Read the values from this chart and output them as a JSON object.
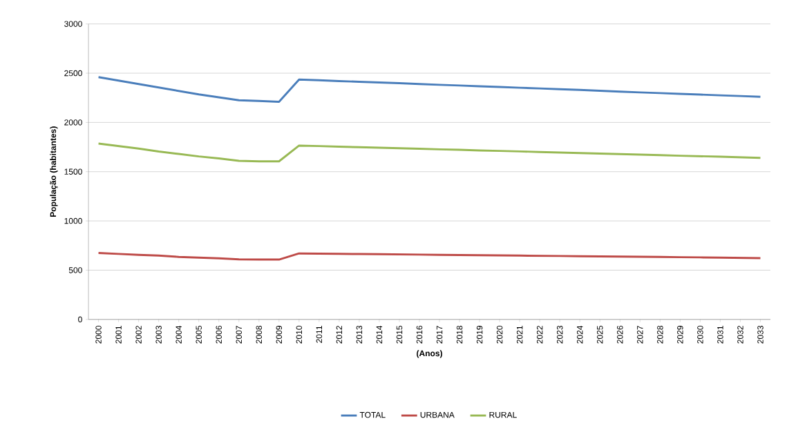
{
  "chart_data": {
    "type": "line",
    "xlabel": "(Anos)",
    "ylabel": "População (habitantes)",
    "categories": [
      "2000",
      "2001",
      "2002",
      "2003",
      "2004",
      "2005",
      "2006",
      "2007",
      "2008",
      "2009",
      "2010",
      "2011",
      "2012",
      "2013",
      "2014",
      "2015",
      "2016",
      "2017",
      "2018",
      "2019",
      "2020",
      "2021",
      "2022",
      "2023",
      "2024",
      "2025",
      "2026",
      "2027",
      "2028",
      "2029",
      "2030",
      "2031",
      "2032",
      "2033"
    ],
    "series": [
      {
        "name": "TOTAL",
        "color": "#4a7ebb",
        "values": [
          2460,
          2425,
          2390,
          2355,
          2320,
          2285,
          2255,
          2225,
          2218,
          2210,
          2435,
          2428,
          2420,
          2413,
          2405,
          2398,
          2390,
          2382,
          2375,
          2367,
          2360,
          2352,
          2345,
          2337,
          2330,
          2322,
          2313,
          2305,
          2298,
          2290,
          2283,
          2275,
          2268,
          2260
        ]
      },
      {
        "name": "URBANA",
        "color": "#be4b48",
        "values": [
          675,
          665,
          655,
          648,
          635,
          628,
          620,
          610,
          608,
          608,
          670,
          668,
          666,
          664,
          662,
          660,
          658,
          656,
          654,
          652,
          650,
          648,
          646,
          644,
          642,
          640,
          638,
          636,
          634,
          632,
          630,
          628,
          625,
          622
        ]
      },
      {
        "name": "RURAL",
        "color": "#98b954",
        "values": [
          1785,
          1760,
          1735,
          1705,
          1680,
          1655,
          1635,
          1610,
          1605,
          1605,
          1765,
          1760,
          1754,
          1749,
          1743,
          1738,
          1733,
          1727,
          1722,
          1716,
          1711,
          1706,
          1700,
          1695,
          1689,
          1684,
          1679,
          1673,
          1668,
          1662,
          1657,
          1652,
          1646,
          1640
        ]
      }
    ],
    "ylim": [
      0,
      3000
    ],
    "yticks": [
      0,
      500,
      1000,
      1500,
      2000,
      2500,
      3000
    ],
    "grid": "y",
    "legend": "bottom",
    "marker": "none",
    "line_style": "solid"
  }
}
